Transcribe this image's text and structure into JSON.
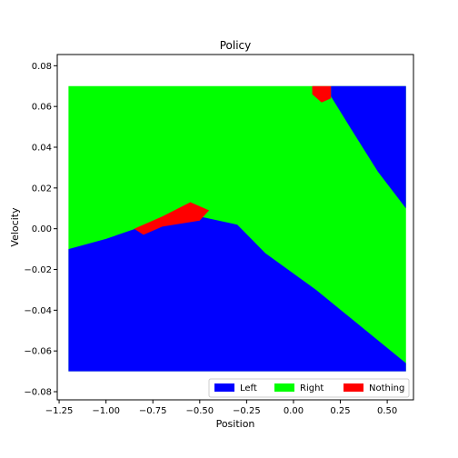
{
  "chart_data": {
    "type": "scatter",
    "title": "Policy",
    "xlabel": "Position",
    "ylabel": "Velocity",
    "xlim": [
      -1.26,
      0.64
    ],
    "ylim": [
      -0.084,
      0.0855
    ],
    "x_ticks": [
      -1.25,
      -1.0,
      -0.75,
      -0.5,
      -0.25,
      0.0,
      0.25,
      0.5
    ],
    "x_tick_labels": [
      "−1.25",
      "−1.00",
      "−0.75",
      "−0.50",
      "−0.25",
      "0.00",
      "0.25",
      "0.50"
    ],
    "y_ticks": [
      -0.08,
      -0.06,
      -0.04,
      -0.02,
      0.0,
      0.02,
      0.04,
      0.06,
      0.08
    ],
    "y_tick_labels": [
      "−0.08",
      "−0.06",
      "−0.04",
      "−0.02",
      "0.00",
      "0.02",
      "0.04",
      "0.06",
      "0.08"
    ],
    "grid": false,
    "legend_position": "lower-right",
    "series": [
      {
        "name": "Left",
        "color": "#0000ff"
      },
      {
        "name": "Right",
        "color": "#00ff00"
      },
      {
        "name": "Nothing",
        "color": "#ff0000"
      }
    ],
    "domain": {
      "x": [
        -1.2,
        0.6
      ],
      "y": [
        -0.07,
        0.07
      ]
    },
    "regions": {
      "Left_lower_vertices": [
        [
          -1.2,
          -0.07
        ],
        [
          0.6,
          -0.07
        ],
        [
          0.6,
          -0.066
        ],
        [
          0.12,
          -0.03
        ],
        [
          -0.15,
          -0.012
        ],
        [
          -0.3,
          0.002
        ],
        [
          -0.5,
          0.006
        ],
        [
          -0.78,
          0.002
        ],
        [
          -1.0,
          -0.005
        ],
        [
          -1.2,
          -0.01
        ]
      ],
      "Left_upper_vertices": [
        [
          0.2,
          0.07
        ],
        [
          0.6,
          0.07
        ],
        [
          0.6,
          0.01
        ],
        [
          0.45,
          0.028
        ],
        [
          0.3,
          0.05
        ],
        [
          0.22,
          0.062
        ],
        [
          0.2,
          0.065
        ]
      ],
      "Nothing_patch_vertices": [
        [
          -0.85,
          0.0
        ],
        [
          -0.7,
          0.006
        ],
        [
          -0.55,
          0.013
        ],
        [
          -0.45,
          0.009
        ],
        [
          -0.5,
          0.004
        ],
        [
          -0.7,
          0.001
        ],
        [
          -0.8,
          -0.003
        ]
      ],
      "Nothing_small_vertices": [
        [
          0.1,
          0.07
        ],
        [
          0.2,
          0.07
        ],
        [
          0.2,
          0.064
        ],
        [
          0.15,
          0.062
        ],
        [
          0.1,
          0.066
        ]
      ]
    }
  }
}
